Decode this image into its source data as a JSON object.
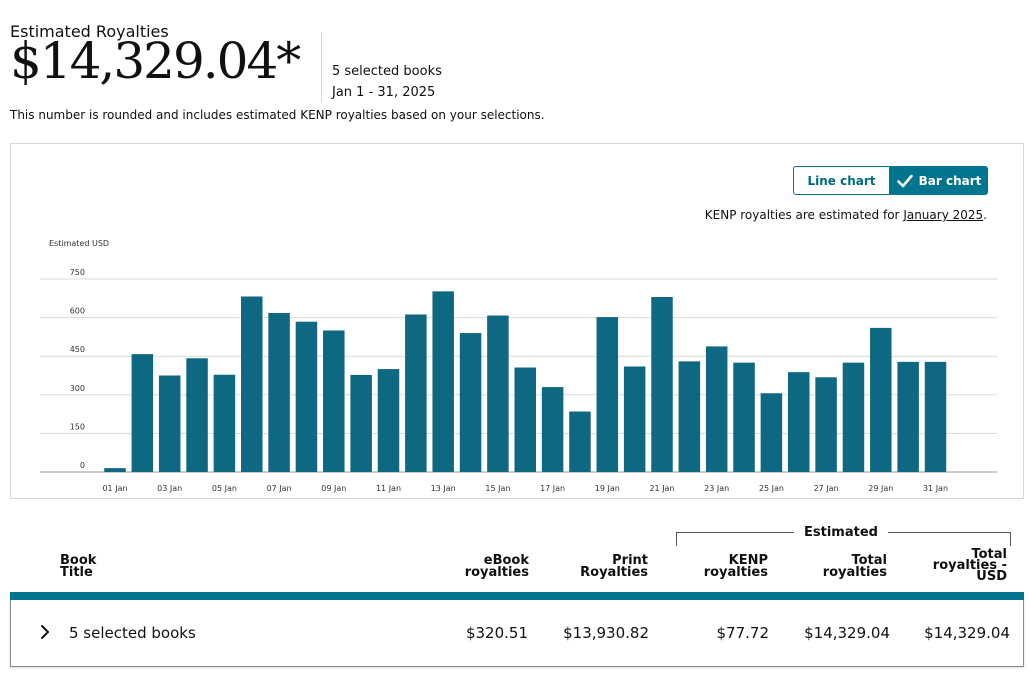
{
  "summary": {
    "label": "Estimated Royalties",
    "amount": "$14,329.04*",
    "books": "5 selected books",
    "date_range": "Jan 1 - 31, 2025",
    "note": "This number is rounded and includes estimated KENP royalties based on your selections."
  },
  "chart_controls": {
    "line_label": "Line chart",
    "bar_label": "Bar chart",
    "kenp_prefix": "KENP royalties are estimated for ",
    "kenp_link": "January 2025",
    "kenp_suffix": "."
  },
  "colors": {
    "accent": "#00758f",
    "bar": "#0e6882",
    "grid": "#d9d9d9"
  },
  "chart_data": {
    "type": "bar",
    "ylabel": "Estimated USD",
    "ylim": [
      0,
      750
    ],
    "yticks": [
      0,
      150,
      300,
      450,
      600,
      750
    ],
    "grid": true,
    "categories": [
      "01 Jan",
      "02 Jan",
      "03 Jan",
      "04 Jan",
      "05 Jan",
      "06 Jan",
      "07 Jan",
      "08 Jan",
      "09 Jan",
      "10 Jan",
      "11 Jan",
      "12 Jan",
      "13 Jan",
      "14 Jan",
      "15 Jan",
      "16 Jan",
      "17 Jan",
      "18 Jan",
      "19 Jan",
      "20 Jan",
      "21 Jan",
      "22 Jan",
      "23 Jan",
      "24 Jan",
      "25 Jan",
      "26 Jan",
      "27 Jan",
      "28 Jan",
      "29 Jan",
      "30 Jan",
      "31 Jan"
    ],
    "tick_labels": [
      "01 Jan",
      "03 Jan",
      "05 Jan",
      "07 Jan",
      "09 Jan",
      "11 Jan",
      "13 Jan",
      "15 Jan",
      "17 Jan",
      "19 Jan",
      "21 Jan",
      "23 Jan",
      "25 Jan",
      "27 Jan",
      "29 Jan",
      "31 Jan"
    ],
    "values": [
      15,
      458,
      375,
      442,
      378,
      682,
      618,
      584,
      550,
      377,
      400,
      612,
      702,
      540,
      608,
      406,
      330,
      235,
      602,
      410,
      680,
      430,
      488,
      425,
      306,
      388,
      368,
      425,
      560,
      428,
      428
    ]
  },
  "table": {
    "estimated_label": "Estimated",
    "headers": {
      "title": [
        "Book",
        "Title"
      ],
      "ebook": [
        "eBook",
        "royalties"
      ],
      "print": [
        "Print",
        "Royalties"
      ],
      "kenp": [
        "KENP",
        "royalties"
      ],
      "total": [
        "Total",
        "royalties"
      ],
      "total_usd": [
        "Total",
        "royalties -",
        "USD"
      ]
    },
    "row": {
      "title": "5 selected books",
      "ebook": "$320.51",
      "print": "$13,930.82",
      "kenp": "$77.72",
      "total": "$14,329.04",
      "total_usd": "$14,329.04"
    }
  }
}
